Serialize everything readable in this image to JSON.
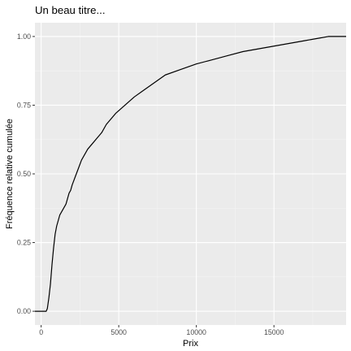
{
  "chart_data": {
    "type": "line",
    "step": true,
    "title": "Un beau titre...",
    "xlabel": "Prix",
    "ylabel": "Fréquence relative cumulée",
    "xlim": [
      -400,
      19650
    ],
    "ylim": [
      -0.05,
      1.05
    ],
    "x_ticks": [
      0,
      5000,
      10000,
      15000
    ],
    "x_tick_labels": [
      "0",
      "5000",
      "10000",
      "15000"
    ],
    "y_ticks": [
      0,
      0.25,
      0.5,
      0.75,
      1
    ],
    "y_tick_labels": [
      "0.00",
      "0.25",
      "0.50",
      "0.75",
      "1.00"
    ],
    "grid": true,
    "background": "#ebebeb",
    "grid_major_color": "#ffffff",
    "line_color": "#000000",
    "series": [
      {
        "x": [
          -400,
          326,
          400,
          500,
          600,
          700,
          800,
          900,
          1000,
          1100,
          1200,
          1300,
          1400,
          1500,
          1600,
          1700,
          1800,
          1900,
          2000,
          2200,
          2400,
          2600,
          2800,
          3000,
          3300,
          3600,
          3900,
          4200,
          4500,
          4800,
          5200,
          5600,
          6000,
          6500,
          7000,
          7500,
          8000,
          9000,
          10000,
          11000,
          12000,
          13000,
          14000,
          15000,
          16000,
          17000,
          18000,
          18500,
          19650
        ],
        "y": [
          0,
          0,
          0.01,
          0.05,
          0.1,
          0.17,
          0.23,
          0.28,
          0.31,
          0.33,
          0.35,
          0.36,
          0.37,
          0.38,
          0.39,
          0.41,
          0.43,
          0.44,
          0.46,
          0.49,
          0.52,
          0.55,
          0.57,
          0.59,
          0.61,
          0.63,
          0.65,
          0.68,
          0.7,
          0.72,
          0.74,
          0.76,
          0.78,
          0.8,
          0.82,
          0.84,
          0.86,
          0.88,
          0.9,
          0.915,
          0.93,
          0.945,
          0.955,
          0.965,
          0.975,
          0.985,
          0.995,
          1,
          1
        ]
      }
    ]
  }
}
